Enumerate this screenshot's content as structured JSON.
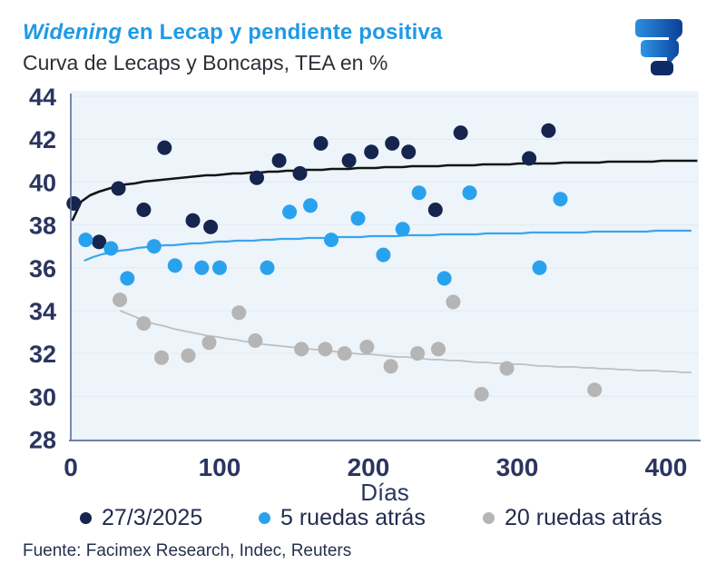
{
  "title": {
    "italic": "Widening",
    "rest": "en Lecap y pendiente positiva"
  },
  "subtitle": "Curva de Lecaps y Boncaps, TEA en %",
  "logo": "facimex-logo",
  "footer": "Fuente: Facimex Research, Indec, Reuters",
  "colors": {
    "title_blue": "#1e9ae6",
    "dark_navy_series": "#16254e",
    "light_blue_series": "#29a2ee",
    "gray_series": "#b5b5b5",
    "black_trend": "#141414",
    "blue_trend": "#3aa5ef",
    "gray_trend": "#bfbfbf",
    "plot_background": "#edf4fa",
    "gridline": "#e2eaf2",
    "axis_line": "#5c6b9c",
    "tick_label": "#2c3560"
  },
  "chart_data": {
    "type": "scatter",
    "title": "Widening en Lecap y pendiente positiva",
    "subtitle": "Curva de Lecaps y Boncaps, TEA en %",
    "xlabel": "Días",
    "ylabel": "TEA en %",
    "xlim": [
      0,
      422
    ],
    "ylim": [
      28,
      44
    ],
    "x_ticks": [
      0,
      100,
      200,
      300,
      400
    ],
    "y_ticks": [
      44,
      42,
      40,
      38,
      36,
      34,
      32,
      30,
      28
    ],
    "grid": "horizontal",
    "legend_position": "bottom",
    "series": [
      {
        "name": "27/3/2025",
        "color": "#16254e",
        "points": [
          [
            2,
            39.0
          ],
          [
            19,
            37.2
          ],
          [
            32,
            39.7
          ],
          [
            49,
            38.7
          ],
          [
            63,
            41.6
          ],
          [
            82,
            38.2
          ],
          [
            94,
            37.9
          ],
          [
            125,
            40.2
          ],
          [
            140,
            41.0
          ],
          [
            154,
            40.4
          ],
          [
            168,
            41.8
          ],
          [
            187,
            41.0
          ],
          [
            202,
            41.4
          ],
          [
            216,
            41.8
          ],
          [
            227,
            41.4
          ],
          [
            245,
            38.7
          ],
          [
            262,
            42.3
          ],
          [
            308,
            41.1
          ],
          [
            321,
            42.4
          ]
        ],
        "trend": {
          "form": "y = a + b*ln(x)",
          "a": 38.2,
          "b": 0.464,
          "x_start": 1,
          "x_end": 422,
          "color": "#141414",
          "width": 2.6
        }
      },
      {
        "name": "5 ruedas atrás",
        "color": "#29a2ee",
        "points": [
          [
            10,
            37.3
          ],
          [
            27,
            36.9
          ],
          [
            38,
            35.5
          ],
          [
            56,
            37.0
          ],
          [
            70,
            36.1
          ],
          [
            88,
            36.0
          ],
          [
            100,
            36.0
          ],
          [
            132,
            36.0
          ],
          [
            147,
            38.6
          ],
          [
            161,
            38.9
          ],
          [
            175,
            37.3
          ],
          [
            193,
            38.3
          ],
          [
            210,
            36.6
          ],
          [
            223,
            37.8
          ],
          [
            234,
            39.5
          ],
          [
            251,
            35.5
          ],
          [
            268,
            39.5
          ],
          [
            315,
            36.0
          ],
          [
            329,
            39.2
          ]
        ],
        "trend": {
          "form": "y = a + b*ln(x)",
          "a": 35.5,
          "b": 0.37,
          "x_start": 9,
          "x_end": 422,
          "color": "#3aa5ef",
          "width": 2.2
        }
      },
      {
        "name": "20 ruedas atrás",
        "color": "#b5b5b5",
        "points": [
          [
            33,
            34.5
          ],
          [
            49,
            33.4
          ],
          [
            61,
            31.8
          ],
          [
            79,
            31.9
          ],
          [
            93,
            32.5
          ],
          [
            113,
            33.9
          ],
          [
            124,
            32.6
          ],
          [
            155,
            32.2
          ],
          [
            171,
            32.2
          ],
          [
            184,
            32.0
          ],
          [
            199,
            32.3
          ],
          [
            215,
            31.4
          ],
          [
            233,
            32.0
          ],
          [
            247,
            32.2
          ],
          [
            257,
            34.4
          ],
          [
            276,
            30.1
          ],
          [
            293,
            31.3
          ],
          [
            352,
            30.3
          ]
        ],
        "trend": {
          "form": "y = a + b*ln(x)",
          "a": 37.99,
          "b": -1.14,
          "x_start": 33,
          "x_end": 422,
          "color": "#bfbfbf",
          "width": 1.8
        }
      }
    ]
  }
}
